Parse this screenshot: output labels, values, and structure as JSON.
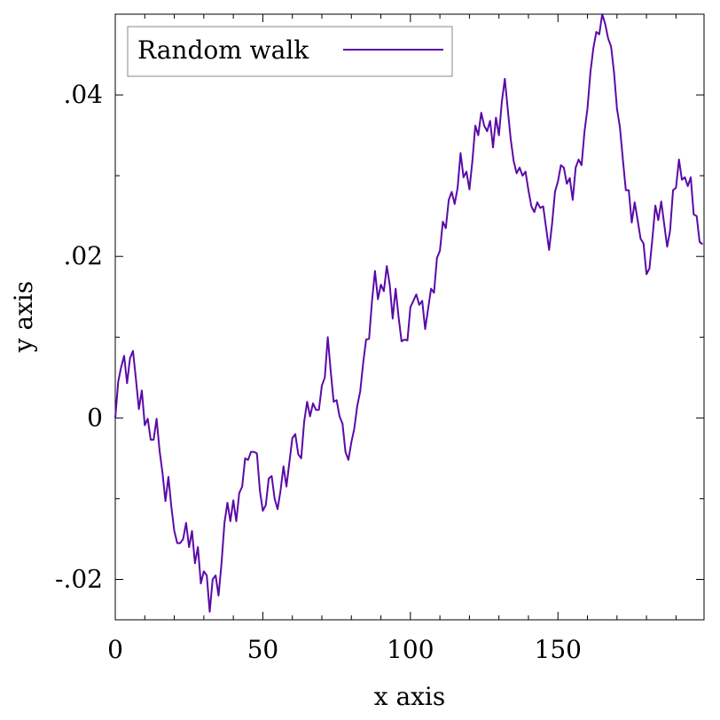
{
  "chart_data": {
    "type": "line",
    "title": "",
    "xlabel": "x axis",
    "ylabel": "y axis",
    "xlim": [
      0,
      200
    ],
    "ylim": [
      -0.025,
      0.05
    ],
    "grid": false,
    "legend": {
      "position": "top-left",
      "entries": [
        "Random walk"
      ]
    },
    "x_ticks": [
      {
        "value": 0,
        "label": "0"
      },
      {
        "value": 50,
        "label": "50"
      },
      {
        "value": 100,
        "label": "100"
      },
      {
        "value": 150,
        "label": "150"
      }
    ],
    "y_ticks": [
      {
        "value": -0.02,
        "label": "-.02"
      },
      {
        "value": 0,
        "label": "0"
      },
      {
        "value": 0.02,
        "label": ".02"
      },
      {
        "value": 0.04,
        "label": ".04"
      }
    ],
    "series": [
      {
        "name": "Random walk",
        "color": "#5a0aa8",
        "x_start": 0,
        "x_step": 1,
        "values": [
          0.0,
          0.0045,
          0.0063,
          0.0077,
          0.0043,
          0.0074,
          0.0083,
          0.0048,
          0.0011,
          0.0034,
          -0.0009,
          -0.0001,
          -0.0027,
          -0.0027,
          -0.0001,
          -0.004,
          -0.0068,
          -0.0103,
          -0.0073,
          -0.011,
          -0.014,
          -0.0155,
          -0.0155,
          -0.015,
          -0.013,
          -0.016,
          -0.014,
          -0.018,
          -0.016,
          -0.0205,
          -0.019,
          -0.0195,
          -0.024,
          -0.02,
          -0.0195,
          -0.022,
          -0.018,
          -0.013,
          -0.0105,
          -0.0128,
          -0.0102,
          -0.0128,
          -0.0093,
          -0.0085,
          -0.005,
          -0.0052,
          -0.0042,
          -0.0042,
          -0.0044,
          -0.009,
          -0.0115,
          -0.0108,
          -0.0075,
          -0.0072,
          -0.01,
          -0.0113,
          -0.009,
          -0.006,
          -0.0085,
          -0.0055,
          -0.0025,
          -0.002,
          -0.0045,
          -0.005,
          -0.0005,
          0.002,
          0.0002,
          0.0018,
          0.001,
          0.001,
          0.004,
          0.005,
          0.01,
          0.0058,
          0.002,
          0.0022,
          0.0002,
          -0.0007,
          -0.0042,
          -0.0052,
          -0.003,
          -0.0013,
          0.0015,
          0.0033,
          0.0068,
          0.0097,
          0.0098,
          0.0145,
          0.0182,
          0.0147,
          0.0165,
          0.0157,
          0.0188,
          0.0165,
          0.0123,
          0.016,
          0.0125,
          0.0095,
          0.0097,
          0.0096,
          0.0137,
          0.0145,
          0.0153,
          0.014,
          0.0145,
          0.011,
          0.0135,
          0.016,
          0.0155,
          0.0198,
          0.0207,
          0.0243,
          0.0235,
          0.027,
          0.028,
          0.0265,
          0.0285,
          0.0328,
          0.0298,
          0.0305,
          0.0283,
          0.0318,
          0.0362,
          0.035,
          0.0378,
          0.0362,
          0.0355,
          0.0368,
          0.0335,
          0.0372,
          0.035,
          0.0392,
          0.042,
          0.0382,
          0.0345,
          0.0318,
          0.0303,
          0.031,
          0.03,
          0.0305,
          0.0282,
          0.0262,
          0.0255,
          0.0267,
          0.026,
          0.0262,
          0.0235,
          0.0208,
          0.024,
          0.028,
          0.0293,
          0.0313,
          0.031,
          0.029,
          0.0297,
          0.027,
          0.031,
          0.032,
          0.0313,
          0.0355,
          0.0383,
          0.0428,
          0.0458,
          0.0478,
          0.0475,
          0.05,
          0.0488,
          0.047,
          0.046,
          0.0428,
          0.0383,
          0.036,
          0.032,
          0.0282,
          0.0282,
          0.0242,
          0.0267,
          0.0245,
          0.0222,
          0.0216,
          0.0178,
          0.0185,
          0.0222,
          0.0263,
          0.0245,
          0.0268,
          0.024,
          0.0212,
          0.0232,
          0.0282,
          0.0285,
          0.032,
          0.0295,
          0.0298,
          0.0287,
          0.0298,
          0.0252,
          0.025,
          0.0218,
          0.0215
        ]
      }
    ]
  }
}
